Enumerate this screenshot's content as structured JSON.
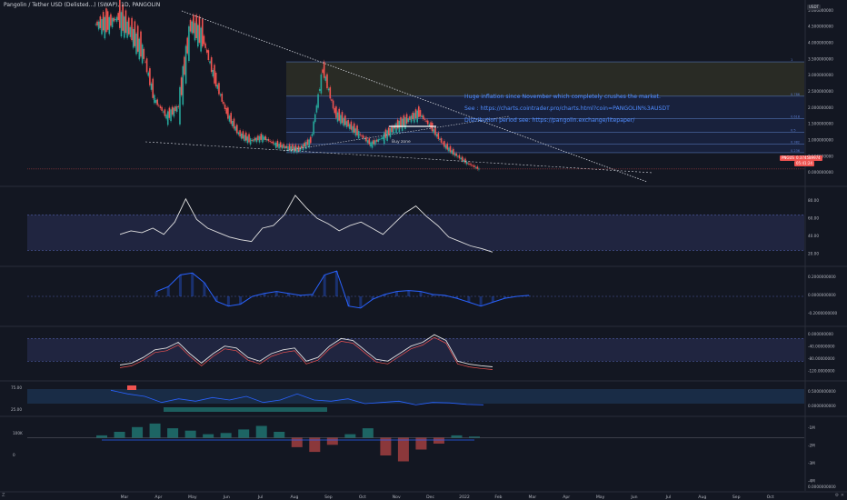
{
  "header": {
    "title": "Pangolin / Tether USD (Delisted...) (SWAP), 1D, PANGOLIN"
  },
  "annotations": {
    "inflation": "Huge inflation since November which completely crushes the market.",
    "see_link": "See : https://charts.cointrader.pro/charts.html?coin=PANGOLIN%3AUSDT",
    "distribution": "Distribution period see: https://pangolin.exchange/litepaper/",
    "buy_zone": "Buy zone"
  },
  "price_badges": {
    "symbol": "PNGUSDT",
    "price": "0.374589974",
    "countdown": "05:41:24"
  },
  "fib_labels": [
    "1",
    "0.786",
    "0.618",
    "0.5",
    "0.382",
    "0.236",
    "0"
  ],
  "axes": {
    "price_ticks": [
      "5.000000000",
      "4.500000000",
      "4.000000000",
      "3.500000000",
      "3.000000000",
      "2.500000000",
      "2.000000000",
      "1.500000000",
      "1.000000000",
      "0.500000000",
      "0.000000000"
    ],
    "rsi_ticks": [
      "80.00",
      "60.00",
      "40.00",
      "20.00"
    ],
    "ind2_ticks": [
      "0.2000000000",
      "0.0000000000",
      "-0.2000000000"
    ],
    "ind3_ticks": [
      "0.000000000",
      "-40.00000000",
      "-80.00000000",
      "-120.0000000"
    ],
    "ind4_ticks": [
      "0.5000000000",
      "0.0000000000"
    ],
    "ind4_left_ticks": [
      "75.00",
      "25.00"
    ],
    "vol_ticks": [
      "-1M",
      "-2M",
      "-3M",
      "-4M"
    ],
    "vol_left_ticks": [
      "100K",
      "0"
    ],
    "bottom_tick": "0.0000000000",
    "months": [
      "Mar",
      "Apr",
      "May",
      "Jun",
      "Jul",
      "Aug",
      "Sep",
      "Oct",
      "Nov",
      "Dec",
      "2022",
      "Feb",
      "Mar",
      "Apr",
      "May",
      "Jun",
      "Jul",
      "Aug",
      "Sep",
      "Oct"
    ],
    "top_right": "USDT",
    "tz": "Z",
    "corner": "⚙ ✕"
  },
  "colors": {
    "background": "#131722",
    "bull": "#26a69a",
    "bear": "#ef5350",
    "annotation": "#4f8cff",
    "fib_box_top": "#3c3c28",
    "fib_box_mid": "#1e2a52"
  },
  "chart_data": [
    {
      "type": "candlestick",
      "title": "Pangolin / Tether USD (Delisted...) (SWAP), 1D, PANGOLIN",
      "x": [
        "Mar",
        "Apr",
        "May",
        "Jun",
        "Jul",
        "Aug",
        "Sep",
        "Oct",
        "Nov",
        "Dec",
        "2022"
      ],
      "close_path": [
        4.6,
        4.8,
        4.4,
        3.8,
        2.4,
        1.9,
        2.2,
        4.6,
        4.2,
        3.0,
        2.0,
        1.4,
        1.2,
        1.3,
        1.1,
        1.0,
        0.95,
        1.2,
        3.3,
        2.0,
        1.7,
        1.4,
        1.1,
        1.3,
        1.6,
        1.8,
        2.0,
        1.6,
        1.1,
        0.8,
        0.55,
        0.37
      ],
      "ylim": [
        0,
        5.2
      ],
      "last_price": 0.374589974
    },
    {
      "type": "line",
      "title": "",
      "ylim": [
        15,
        95
      ],
      "band": [
        30,
        70
      ],
      "values": [
        48,
        52,
        50,
        55,
        48,
        62,
        88,
        65,
        55,
        50,
        45,
        42,
        40,
        55,
        58,
        70,
        92,
        78,
        66,
        60,
        52,
        58,
        62,
        55,
        48,
        60,
        72,
        80,
        68,
        58,
        45,
        40,
        35,
        32,
        28
      ]
    },
    {
      "type": "area",
      "title": "",
      "ylim": [
        -0.28,
        0.28
      ],
      "values": [
        0.05,
        0.1,
        0.22,
        0.24,
        0.14,
        -0.05,
        -0.1,
        -0.08,
        0.0,
        0.03,
        0.05,
        0.03,
        0.01,
        0.02,
        0.22,
        0.26,
        -0.1,
        -0.12,
        -0.03,
        0.02,
        0.05,
        0.06,
        0.05,
        0.02,
        0.01,
        -0.02,
        -0.06,
        -0.1,
        -0.06,
        -0.02,
        0.0,
        0.01
      ]
    },
    {
      "type": "line",
      "title": "",
      "ylim": [
        -125,
        5
      ],
      "band": [
        -80,
        -20
      ],
      "values": [
        -90,
        -85,
        -70,
        -50,
        -45,
        -30,
        -60,
        -85,
        -60,
        -40,
        -45,
        -70,
        -80,
        -60,
        -50,
        -45,
        -80,
        -70,
        -40,
        -20,
        -25,
        -50,
        -75,
        -80,
        -60,
        -40,
        -30,
        -10,
        -25,
        -80,
        -88,
        -92,
        -95
      ]
    },
    {
      "type": "line",
      "title": "",
      "ylim": [
        -0.3,
        0.9
      ],
      "values": [
        0.7,
        0.55,
        0.45,
        0.2,
        0.35,
        0.25,
        0.4,
        0.3,
        0.45,
        0.2,
        0.3,
        0.55,
        0.3,
        0.25,
        0.35,
        0.15,
        0.2,
        0.25,
        0.1,
        0.2,
        0.18,
        0.12,
        0.1
      ]
    },
    {
      "type": "bar",
      "title": "",
      "ylim": [
        -4.5,
        1.5
      ],
      "values": [
        0.2,
        0.5,
        0.9,
        1.2,
        0.8,
        0.6,
        0.3,
        0.4,
        0.7,
        1.0,
        0.5,
        -0.8,
        -1.2,
        -0.6,
        0.3,
        0.8,
        -1.5,
        -2.0,
        -1.0,
        -0.5,
        0.2,
        0.1
      ]
    }
  ]
}
